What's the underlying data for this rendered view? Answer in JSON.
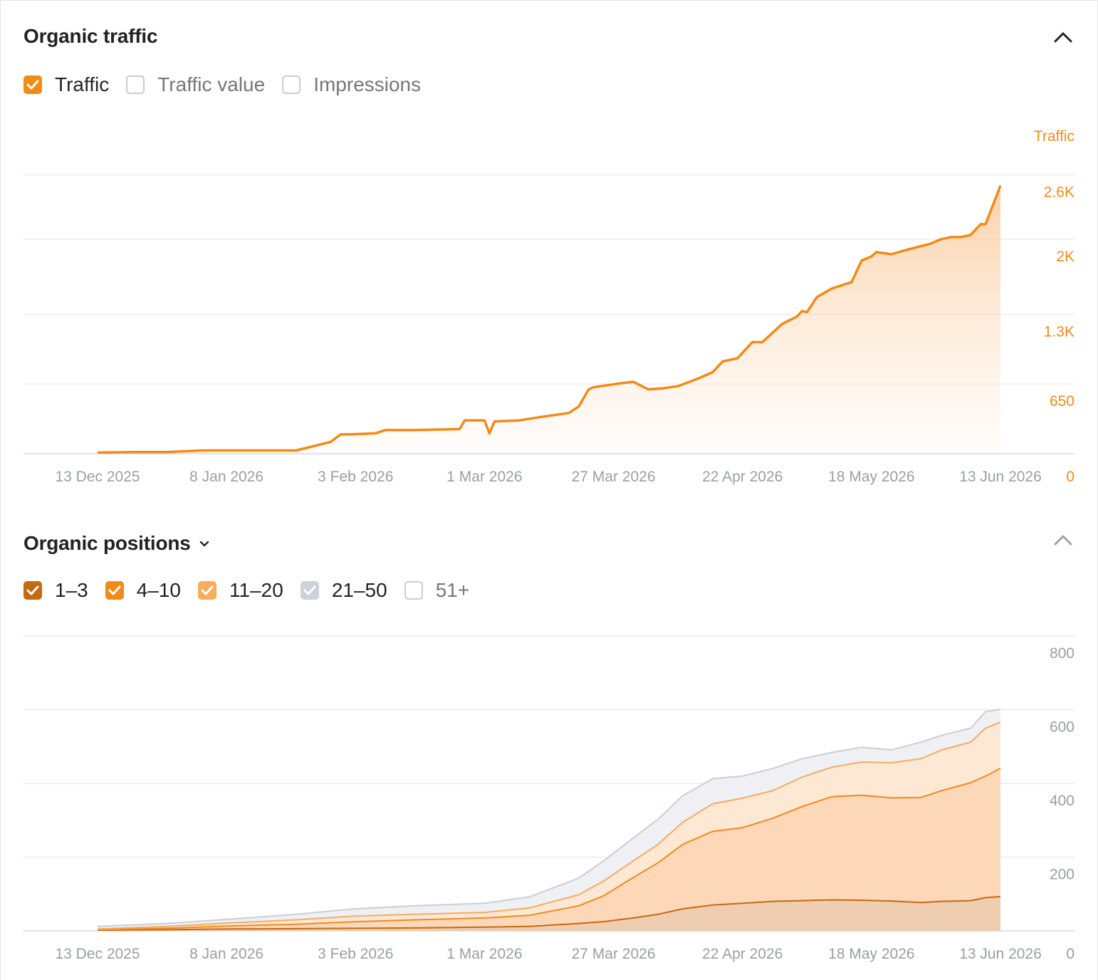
{
  "traffic_section": {
    "title": "Organic traffic",
    "collapse_icon": "chevron-up-icon",
    "legend": [
      {
        "label": "Traffic",
        "checked": true,
        "color": "#f28a16"
      },
      {
        "label": "Traffic value",
        "checked": false,
        "color": "#c9ccd2"
      },
      {
        "label": "Impressions",
        "checked": false,
        "color": "#c9ccd2"
      }
    ]
  },
  "positions_section": {
    "title": "Organic positions",
    "dropdown_icon": "chevron-down-icon",
    "collapse_icon": "chevron-up-icon",
    "legend": [
      {
        "label": "1–3",
        "checked": true,
        "color": "#c66a12"
      },
      {
        "label": "4–10",
        "checked": true,
        "color": "#f28a16"
      },
      {
        "label": "11–20",
        "checked": true,
        "color": "#f7ad5c"
      },
      {
        "label": "21–50",
        "checked": true,
        "color": "#ccd1da"
      },
      {
        "label": "51+",
        "checked": false,
        "color": "#c9ccd2"
      }
    ]
  },
  "chart_data": [
    {
      "type": "area",
      "title": "",
      "xlabel": "",
      "ylabel": "Traffic",
      "x_tick_labels": [
        "13 Dec 2025",
        "8 Jan 2026",
        "3 Feb 2026",
        "1 Mar 2026",
        "27 Mar 2026",
        "22 Apr 2026",
        "18 May 2026",
        "13 Jun 2026"
      ],
      "y_tick_labels": [
        "0",
        "650",
        "1.3K",
        "2K",
        "2.6K"
      ],
      "ylim": [
        0,
        2750
      ],
      "grid": true,
      "x_dates": [
        "2025-12-13",
        "2025-12-20",
        "2025-12-27",
        "2026-01-03",
        "2026-01-08",
        "2026-01-15",
        "2026-01-22",
        "2026-01-29",
        "2026-01-31",
        "2026-02-02",
        "2026-02-07",
        "2026-02-09",
        "2026-02-15",
        "2026-02-24",
        "2026-02-25",
        "2026-03-01",
        "2026-03-02",
        "2026-03-03",
        "2026-03-08",
        "2026-03-12",
        "2026-03-18",
        "2026-03-20",
        "2026-03-22",
        "2026-03-23",
        "2026-03-29",
        "2026-03-31",
        "2026-04-03",
        "2026-04-06",
        "2026-04-09",
        "2026-04-13",
        "2026-04-16",
        "2026-04-18",
        "2026-04-21",
        "2026-04-24",
        "2026-04-26",
        "2026-04-30",
        "2026-05-03",
        "2026-05-04",
        "2026-05-05",
        "2026-05-07",
        "2026-05-10",
        "2026-05-14",
        "2026-05-16",
        "2026-05-18",
        "2026-05-19",
        "2026-05-22",
        "2026-05-25",
        "2026-05-30",
        "2026-06-01",
        "2026-06-03",
        "2026-06-05",
        "2026-06-07",
        "2026-06-09",
        "2026-06-10",
        "2026-06-13"
      ],
      "series": [
        {
          "name": "Traffic",
          "color": "#f28a16",
          "values": [
            10,
            15,
            15,
            30,
            30,
            30,
            30,
            110,
            180,
            180,
            190,
            220,
            220,
            230,
            310,
            310,
            190,
            300,
            310,
            340,
            380,
            440,
            600,
            620,
            660,
            670,
            600,
            610,
            630,
            700,
            760,
            860,
            890,
            1040,
            1040,
            1210,
            1280,
            1330,
            1320,
            1460,
            1540,
            1600,
            1800,
            1840,
            1880,
            1860,
            1900,
            1960,
            2000,
            2020,
            2020,
            2040,
            2140,
            2140,
            2500
          ]
        }
      ]
    },
    {
      "type": "area",
      "title": "",
      "xlabel": "",
      "ylabel": "",
      "x_tick_labels": [
        "13 Dec 2025",
        "8 Jan 2026",
        "3 Feb 2026",
        "1 Mar 2026",
        "27 Mar 2026",
        "22 Apr 2026",
        "18 May 2026",
        "13 Jun 2026"
      ],
      "y_tick_labels": [
        "0",
        "200",
        "400",
        "600",
        "800"
      ],
      "ylim": [
        0,
        800
      ],
      "grid": true,
      "stacked": true,
      "x_dates": [
        "2025-12-13",
        "2025-12-27",
        "2026-01-08",
        "2026-01-22",
        "2026-02-03",
        "2026-02-15",
        "2026-03-01",
        "2026-03-10",
        "2026-03-20",
        "2026-03-25",
        "2026-03-31",
        "2026-04-05",
        "2026-04-10",
        "2026-04-16",
        "2026-04-22",
        "2026-04-28",
        "2026-05-04",
        "2026-05-10",
        "2026-05-16",
        "2026-05-22",
        "2026-05-28",
        "2026-06-01",
        "2026-06-07",
        "2026-06-10",
        "2026-06-13"
      ],
      "series": [
        {
          "name": "1–3",
          "color": "#c66a12",
          "values": [
            2,
            3,
            5,
            6,
            7,
            8,
            10,
            12,
            20,
            25,
            35,
            45,
            60,
            70,
            75,
            80,
            82,
            84,
            83,
            81,
            77,
            80,
            82,
            90,
            93
          ]
        },
        {
          "name": "4–10",
          "color": "#f28a16",
          "values": [
            1,
            4,
            8,
            12,
            18,
            22,
            25,
            30,
            48,
            70,
            110,
            140,
            175,
            200,
            205,
            225,
            255,
            280,
            285,
            280,
            285,
            300,
            320,
            330,
            348
          ]
        },
        {
          "name": "11–20",
          "color": "#f7ad5c",
          "values": [
            2,
            5,
            8,
            12,
            15,
            15,
            15,
            20,
            30,
            40,
            45,
            50,
            60,
            75,
            80,
            75,
            80,
            80,
            90,
            95,
            105,
            110,
            110,
            130,
            125
          ]
        },
        {
          "name": "21–50",
          "color": "#ccd1da",
          "values": [
            7,
            8,
            10,
            15,
            20,
            23,
            25,
            30,
            45,
            55,
            62,
            68,
            72,
            68,
            60,
            60,
            50,
            40,
            40,
            35,
            45,
            40,
            38,
            45,
            35
          ]
        }
      ]
    }
  ]
}
